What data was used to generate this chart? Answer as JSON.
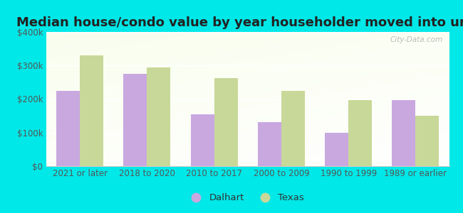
{
  "title": "Median house/condo value by year householder moved into unit",
  "categories": [
    "2021 or later",
    "2018 to 2020",
    "2010 to 2017",
    "2000 to 2009",
    "1990 to 1999",
    "1989 or earlier"
  ],
  "dalhart_values": [
    225000,
    275000,
    155000,
    132000,
    100000,
    197000
  ],
  "texas_values": [
    330000,
    295000,
    262000,
    225000,
    197000,
    150000
  ],
  "dalhart_color": "#c9a8e0",
  "texas_color": "#c8d898",
  "background_outer": "#00e8e8",
  "ylim": [
    0,
    400000
  ],
  "yticks": [
    0,
    100000,
    200000,
    300000,
    400000
  ],
  "ytick_labels": [
    "$0",
    "$100k",
    "$200k",
    "$300k",
    "$400k"
  ],
  "watermark": "City-Data.com",
  "legend_labels": [
    "Dalhart",
    "Texas"
  ],
  "bar_width": 0.35,
  "title_fontsize": 13,
  "tick_fontsize": 8.5,
  "legend_fontsize": 9.5
}
